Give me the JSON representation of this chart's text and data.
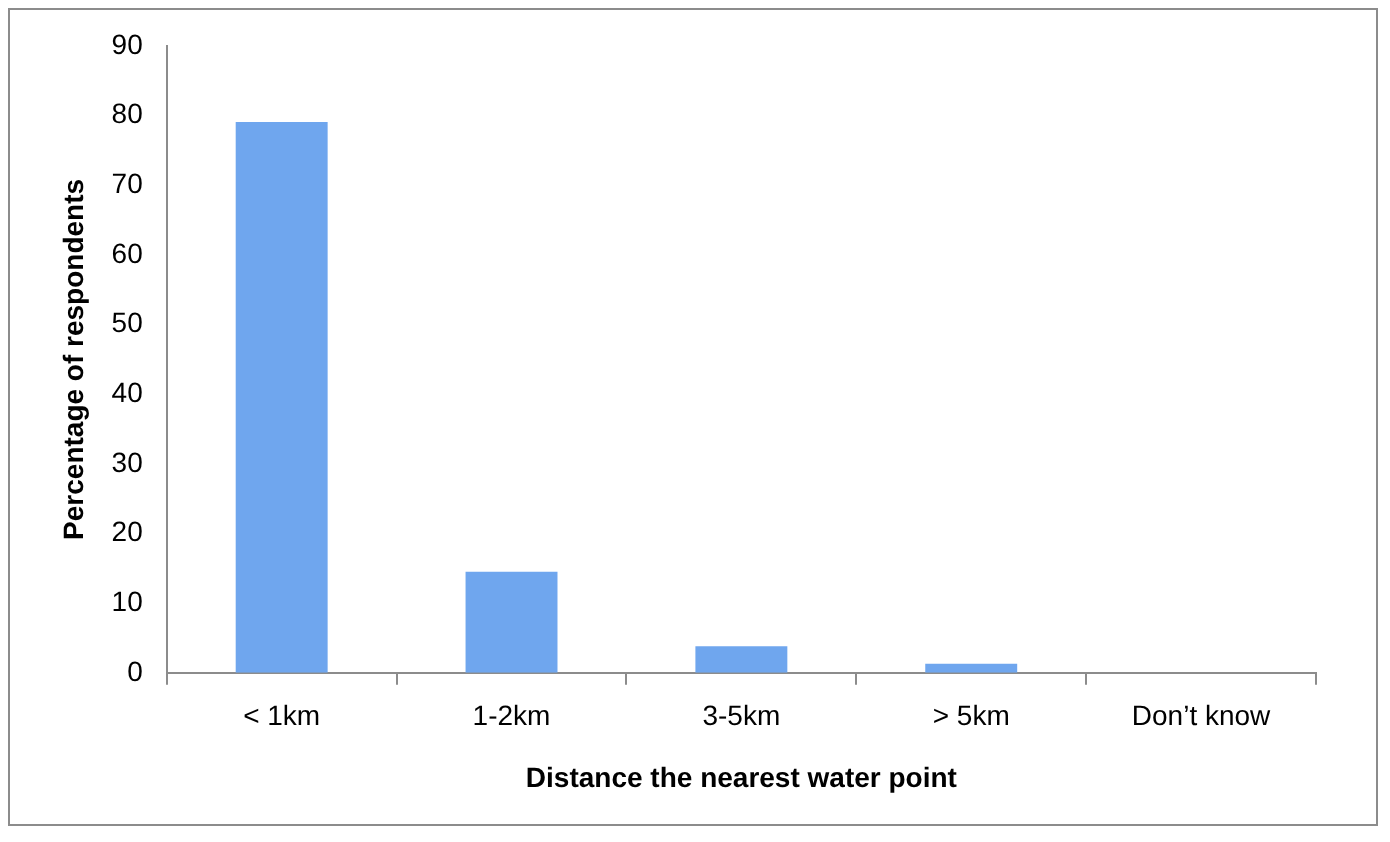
{
  "chart_data": {
    "type": "bar",
    "xlabel": "Distance the nearest water point",
    "ylabel": "Percentage of respondents",
    "categories": [
      "< 1km",
      "1-2km",
      "3-5km",
      "> 5km",
      "Don’t know"
    ],
    "values": [
      79.1,
      14.5,
      3.8,
      1.3,
      0
    ],
    "color": "#6fa6ee",
    "ylim": [
      0,
      90
    ],
    "yticks": [
      0,
      10,
      20,
      30,
      40,
      50,
      60,
      70,
      80,
      90
    ],
    "grid": false,
    "legend": false
  }
}
